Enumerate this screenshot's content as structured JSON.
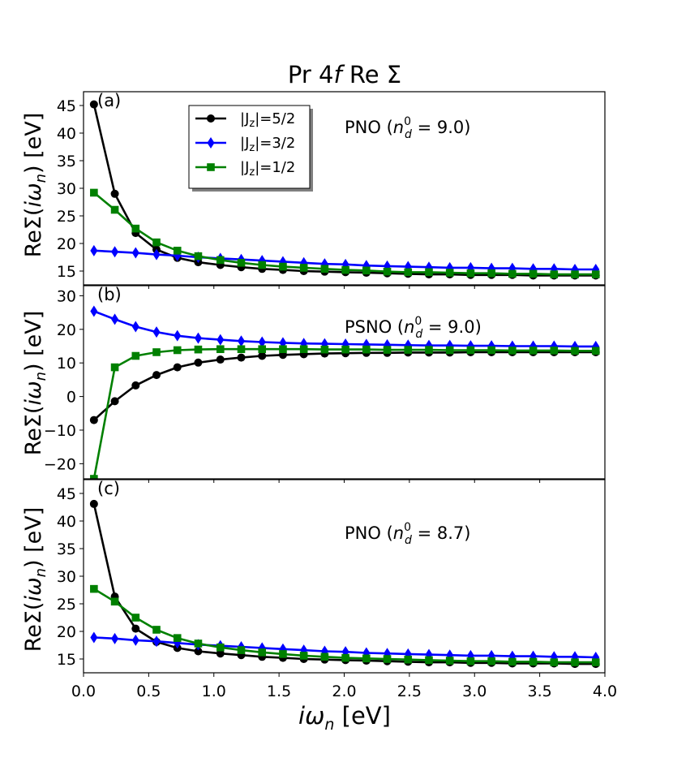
{
  "title": "Pr 4f Re Σ",
  "title_parts": {
    "pre": "Pr 4",
    "ital": "f",
    "post": " Re Σ"
  },
  "xlabel": "iω_n [eV]",
  "xlabel_parts": {
    "ital": "iω",
    "sub": "n",
    "post": " [eV]"
  },
  "ylabel": "ReΣ(iω_n) [eV]",
  "ylabel_parts": {
    "pre": "ReΣ(",
    "ital": "iω",
    "sub": "n",
    "post": ") [eV]"
  },
  "colors": {
    "j52": "#000000",
    "j32": "#0000ff",
    "j12": "#008000"
  },
  "legend": [
    {
      "key": "j52",
      "label": "|J",
      "sub": "z",
      "post": "|=5/2",
      "marker": "circle"
    },
    {
      "key": "j32",
      "label": "|J",
      "sub": "z",
      "post": "|=3/2",
      "marker": "diamond"
    },
    {
      "key": "j12",
      "label": "|J",
      "sub": "z",
      "post": "|=1/2",
      "marker": "square"
    }
  ],
  "chart_data": [
    {
      "type": "line",
      "panel": "(a)",
      "annotation": {
        "pre": "PNO (",
        "math": "n",
        "sub": "d",
        "sup": "0",
        "post": " = 9.0)"
      },
      "xlim": [
        0.0,
        4.0
      ],
      "ylim": [
        12.5,
        47.5
      ],
      "yticks": [
        15,
        20,
        25,
        30,
        35,
        40,
        45
      ],
      "x": [
        0.08,
        0.24,
        0.4,
        0.56,
        0.72,
        0.88,
        1.05,
        1.21,
        1.37,
        1.53,
        1.69,
        1.85,
        2.01,
        2.17,
        2.33,
        2.49,
        2.65,
        2.81,
        2.97,
        3.13,
        3.29,
        3.45,
        3.61,
        3.77,
        3.93
      ],
      "series": [
        {
          "name": "|Jz|=5/2",
          "key": "j52",
          "values": [
            45.2,
            29.0,
            21.9,
            18.9,
            17.4,
            16.6,
            16.1,
            15.7,
            15.4,
            15.2,
            15.0,
            14.9,
            14.8,
            14.7,
            14.6,
            14.5,
            14.4,
            14.4,
            14.3,
            14.3,
            14.3,
            14.2,
            14.2,
            14.2,
            14.2
          ]
        },
        {
          "name": "|Jz|=3/2",
          "key": "j32",
          "values": [
            18.7,
            18.5,
            18.3,
            18.0,
            17.8,
            17.5,
            17.3,
            17.1,
            16.9,
            16.7,
            16.5,
            16.3,
            16.2,
            16.0,
            15.9,
            15.8,
            15.7,
            15.6,
            15.6,
            15.5,
            15.5,
            15.4,
            15.4,
            15.3,
            15.3
          ]
        },
        {
          "name": "|Jz|=1/2",
          "key": "j12",
          "values": [
            29.2,
            26.1,
            22.7,
            20.2,
            18.7,
            17.7,
            17.0,
            16.5,
            16.1,
            15.8,
            15.6,
            15.4,
            15.2,
            15.1,
            14.9,
            14.8,
            14.8,
            14.7,
            14.6,
            14.6,
            14.5,
            14.5,
            14.4,
            14.4,
            14.4
          ]
        }
      ]
    },
    {
      "type": "line",
      "panel": "(b)",
      "annotation": {
        "pre": "PSNO (",
        "math": "n",
        "sub": "d",
        "sup": "0",
        "post": " = 9.0)"
      },
      "xlim": [
        0.0,
        4.0
      ],
      "ylim": [
        -24.5,
        33.0
      ],
      "yticks": [
        -20,
        -10,
        0,
        10,
        20,
        30
      ],
      "x": [
        0.08,
        0.24,
        0.4,
        0.56,
        0.72,
        0.88,
        1.05,
        1.21,
        1.37,
        1.53,
        1.69,
        1.85,
        2.01,
        2.17,
        2.33,
        2.49,
        2.65,
        2.81,
        2.97,
        3.13,
        3.29,
        3.45,
        3.61,
        3.77,
        3.93
      ],
      "series": [
        {
          "name": "|Jz|=5/2",
          "key": "j52",
          "values": [
            -7.0,
            -1.4,
            3.3,
            6.4,
            8.7,
            10.1,
            11.0,
            11.6,
            12.1,
            12.4,
            12.6,
            12.8,
            12.9,
            13.0,
            13.0,
            13.1,
            13.1,
            13.1,
            13.2,
            13.2,
            13.2,
            13.2,
            13.2,
            13.2,
            13.2
          ]
        },
        {
          "name": "|Jz|=3/2",
          "key": "j32",
          "values": [
            25.4,
            23.0,
            20.8,
            19.2,
            18.1,
            17.4,
            16.9,
            16.5,
            16.2,
            16.0,
            15.8,
            15.7,
            15.6,
            15.5,
            15.4,
            15.3,
            15.2,
            15.2,
            15.1,
            15.1,
            15.0,
            15.0,
            15.0,
            14.9,
            14.9
          ]
        },
        {
          "name": "|Jz|=1/2",
          "key": "j12",
          "values": [
            -24.5,
            8.7,
            12.1,
            13.2,
            13.8,
            14.0,
            14.1,
            14.1,
            14.1,
            14.1,
            14.1,
            14.0,
            14.0,
            14.0,
            13.9,
            13.9,
            13.9,
            13.8,
            13.8,
            13.8,
            13.7,
            13.7,
            13.7,
            13.6,
            13.6
          ]
        }
      ]
    },
    {
      "type": "line",
      "panel": "(c)",
      "annotation": {
        "pre": "PNO (",
        "math": "n",
        "sub": "d",
        "sup": "0",
        "post": " = 8.7)"
      },
      "xlim": [
        0.0,
        4.0
      ],
      "ylim": [
        12.5,
        47.5
      ],
      "yticks": [
        15,
        20,
        25,
        30,
        35,
        40,
        45
      ],
      "xticks": [
        0.0,
        0.5,
        1.0,
        1.5,
        2.0,
        2.5,
        3.0,
        3.5,
        4.0
      ],
      "x": [
        0.08,
        0.24,
        0.4,
        0.56,
        0.72,
        0.88,
        1.05,
        1.21,
        1.37,
        1.53,
        1.69,
        1.85,
        2.01,
        2.17,
        2.33,
        2.49,
        2.65,
        2.81,
        2.97,
        3.13,
        3.29,
        3.45,
        3.61,
        3.77,
        3.93
      ],
      "series": [
        {
          "name": "|Jz|=5/2",
          "key": "j52",
          "values": [
            43.1,
            26.3,
            20.5,
            18.1,
            17.0,
            16.4,
            16.0,
            15.7,
            15.4,
            15.2,
            15.0,
            14.9,
            14.8,
            14.7,
            14.6,
            14.5,
            14.4,
            14.4,
            14.3,
            14.3,
            14.2,
            14.2,
            14.2,
            14.1,
            14.1
          ]
        },
        {
          "name": "|Jz|=3/2",
          "key": "j32",
          "values": [
            18.9,
            18.7,
            18.4,
            18.2,
            17.9,
            17.6,
            17.4,
            17.2,
            17.0,
            16.8,
            16.6,
            16.4,
            16.3,
            16.1,
            16.0,
            15.9,
            15.8,
            15.7,
            15.6,
            15.6,
            15.5,
            15.5,
            15.4,
            15.4,
            15.3
          ]
        },
        {
          "name": "|Jz|=1/2",
          "key": "j12",
          "values": [
            27.7,
            25.4,
            22.5,
            20.3,
            18.8,
            17.8,
            17.1,
            16.6,
            16.2,
            15.9,
            15.6,
            15.4,
            15.2,
            15.1,
            15.0,
            14.9,
            14.8,
            14.7,
            14.6,
            14.6,
            14.5,
            14.5,
            14.4,
            14.4,
            14.4
          ]
        }
      ]
    }
  ]
}
